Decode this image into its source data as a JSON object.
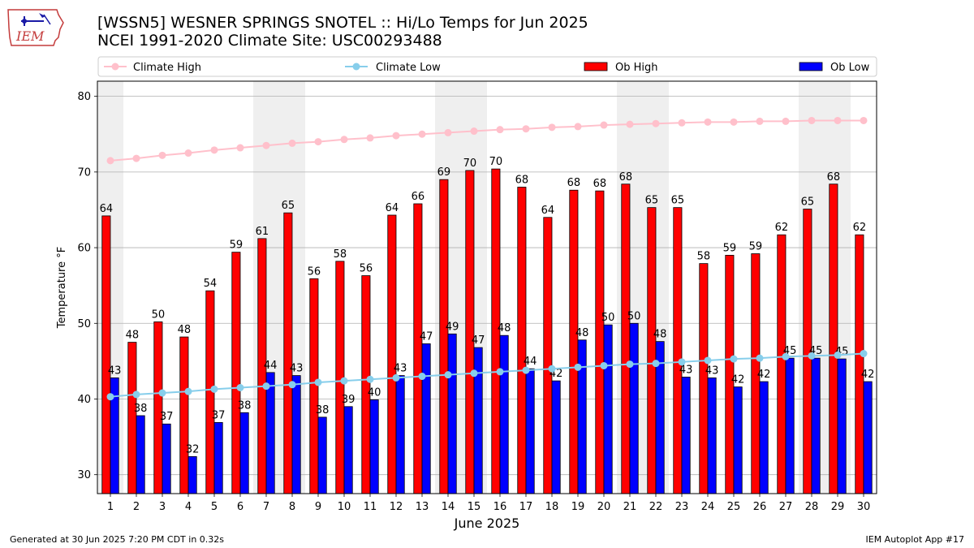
{
  "header": {
    "logo_text": "IEM",
    "title": "[WSSN5] WESNER SPRINGS SNOTEL :: Hi/Lo Temps for Jun 2025",
    "subtitle": "NCEI 1991-2020 Climate Site: USC00293488"
  },
  "footer": {
    "left": "Generated at 30 Jun 2025 7:20 PM CDT in 0.32s",
    "right": "IEM Autoplot App #17"
  },
  "colors": {
    "ob_high": "#ff0000",
    "ob_low": "#0000ff",
    "climate_high": "#ffc0cb",
    "climate_low": "#87ceeb",
    "weekend_shade": "#efefef"
  },
  "chart_data": {
    "type": "bar",
    "xlabel": "June 2025",
    "ylabel": "Temperature °F",
    "ylim": [
      27.5,
      82
    ],
    "yticks": [
      30,
      40,
      50,
      60,
      70,
      80
    ],
    "grid": "horizontal",
    "legend_position": "top",
    "categories": [
      "1",
      "2",
      "3",
      "4",
      "5",
      "6",
      "7",
      "8",
      "9",
      "10",
      "11",
      "12",
      "13",
      "14",
      "15",
      "16",
      "17",
      "18",
      "19",
      "20",
      "21",
      "22",
      "23",
      "24",
      "25",
      "26",
      "27",
      "28",
      "29",
      "30"
    ],
    "weekend_days": [
      1,
      7,
      8,
      14,
      15,
      21,
      22,
      28,
      29
    ],
    "series": [
      {
        "name": "Climate High",
        "kind": "line",
        "values": [
          71.5,
          71.8,
          72.2,
          72.5,
          72.9,
          73.2,
          73.5,
          73.8,
          74.0,
          74.3,
          74.5,
          74.8,
          75.0,
          75.2,
          75.4,
          75.6,
          75.7,
          75.9,
          76.0,
          76.2,
          76.3,
          76.4,
          76.5,
          76.6,
          76.6,
          76.7,
          76.7,
          76.8,
          76.8,
          76.8
        ]
      },
      {
        "name": "Climate Low",
        "kind": "line",
        "values": [
          40.3,
          40.6,
          40.8,
          41.0,
          41.3,
          41.5,
          41.7,
          41.9,
          42.2,
          42.4,
          42.6,
          42.8,
          43.0,
          43.2,
          43.4,
          43.6,
          43.8,
          44.0,
          44.2,
          44.4,
          44.6,
          44.7,
          44.9,
          45.1,
          45.3,
          45.4,
          45.6,
          45.7,
          45.8,
          46.0
        ]
      },
      {
        "name": "Ob High",
        "kind": "bar",
        "values": [
          64.2,
          47.5,
          50.2,
          48.2,
          54.3,
          59.4,
          61.2,
          64.6,
          55.9,
          58.2,
          56.3,
          64.3,
          65.8,
          69.0,
          70.2,
          70.4,
          68.0,
          64.0,
          67.6,
          67.5,
          68.4,
          65.3,
          65.3,
          57.9,
          59.0,
          59.2,
          61.7,
          65.1,
          68.4,
          61.7
        ],
        "labels": [
          "64",
          "48",
          "50",
          "48",
          "54",
          "59",
          "61",
          "65",
          "56",
          "58",
          "56",
          "64",
          "66",
          "69",
          "70",
          "70",
          "68",
          "64",
          "68",
          "68",
          "68",
          "65",
          "65",
          "58",
          "59",
          "59",
          "62",
          "65",
          "68",
          "62"
        ]
      },
      {
        "name": "Ob Low",
        "kind": "bar",
        "values": [
          42.8,
          37.8,
          36.7,
          32.4,
          36.9,
          38.2,
          43.5,
          43.1,
          37.6,
          39.0,
          39.9,
          43.1,
          47.3,
          48.6,
          46.8,
          48.4,
          44.0,
          42.4,
          47.8,
          49.8,
          50.0,
          47.6,
          42.9,
          42.8,
          41.6,
          42.3,
          45.4,
          45.4,
          45.3,
          42.3
        ],
        "labels": [
          "43",
          "38",
          "37",
          "32",
          "37",
          "38",
          "44",
          "43",
          "38",
          "39",
          "40",
          "43",
          "47",
          "49",
          "47",
          "48",
          "44",
          "42",
          "48",
          "50",
          "50",
          "48",
          "43",
          "43",
          "42",
          "42",
          "45",
          "45",
          "45",
          "42"
        ]
      }
    ]
  }
}
